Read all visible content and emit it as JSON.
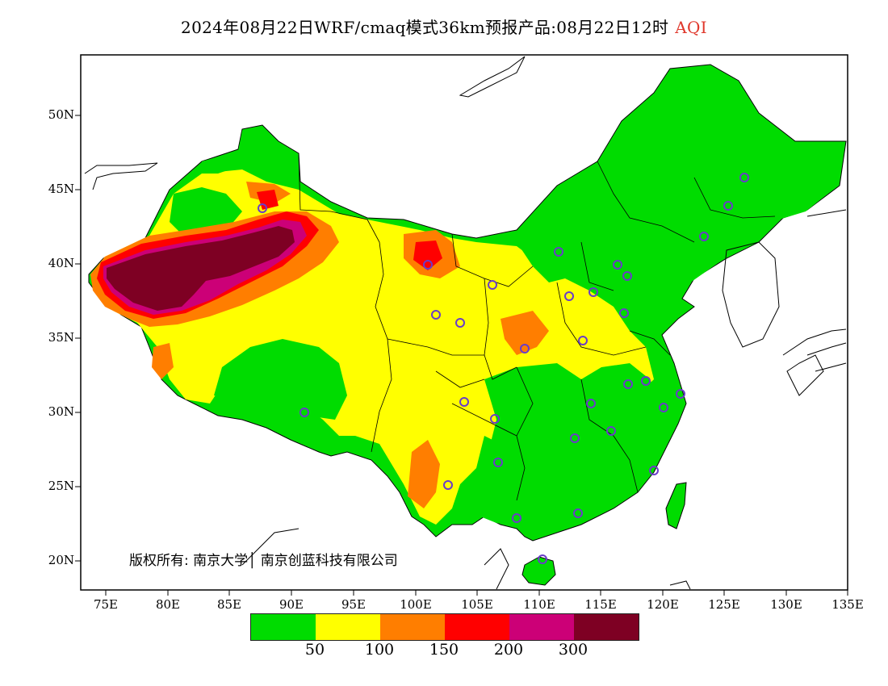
{
  "title": {
    "main": "2024年08月22日WRF/cmaq模式36km预报产品:08月22日12时",
    "variable": "AQI",
    "variable_color": "#e0382c"
  },
  "axes": {
    "lat_labels": [
      "50N",
      "45N",
      "40N",
      "35N",
      "30N",
      "25N",
      "20N"
    ],
    "lon_labels": [
      "75E",
      "80E",
      "85E",
      "90E",
      "95E",
      "100E",
      "105E",
      "110E",
      "115E",
      "120E",
      "125E",
      "130E",
      "135E"
    ],
    "lon_range": [
      73,
      135
    ],
    "lat_range": [
      18,
      54
    ]
  },
  "copyright": "版权所有: 南京大学│ 南京创蓝科技有限公司",
  "legend": {
    "colors": [
      "#00dc00",
      "#ffff00",
      "#ff7e00",
      "#ff0000",
      "#cc0077",
      "#7e0023"
    ],
    "tick_labels": [
      "50",
      "100",
      "150",
      "200",
      "300"
    ]
  },
  "map_colors": {
    "good": "#00dc00",
    "moderate": "#ffff00",
    "usg": "#ff7e00",
    "unhealthy": "#ff0000",
    "very_unhealthy": "#cc0077",
    "hazardous": "#7e0023",
    "station_marker": "#6a3cc8"
  }
}
